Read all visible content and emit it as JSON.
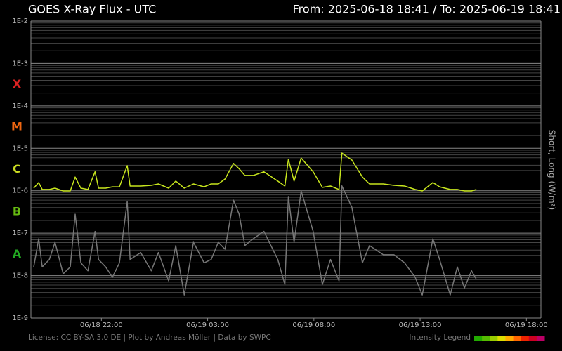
{
  "chart_data": {
    "type": "line",
    "title": "GOES X-Ray Flux - UTC",
    "range_label": "From: 2025-06-18 18:41  /  To: 2025-06-19 18:41",
    "ylabel": "Short, Long (W/m²)",
    "footer": "License: CC BY-SA 3.0 DE | Plot by Andreas Möller | Data by SWPC",
    "log_y": true,
    "grid": true,
    "xlim": [
      "2025-06-18T18:41Z",
      "2025-06-19T18:41Z"
    ],
    "ylim": [
      1e-09,
      0.01
    ],
    "yticks": [
      {
        "value": 1e-09,
        "label": "1E-9"
      },
      {
        "value": 1e-08,
        "label": "1E-8"
      },
      {
        "value": 1e-07,
        "label": "1E-7"
      },
      {
        "value": 1e-06,
        "label": "1E-6"
      },
      {
        "value": 1e-05,
        "label": "1E-5"
      },
      {
        "value": 0.0001,
        "label": "1E-4"
      },
      {
        "value": 0.001,
        "label": "1E-3"
      },
      {
        "value": 0.01,
        "label": "1E-2"
      }
    ],
    "yminor": [
      2e-09,
      3e-09,
      4e-09,
      5e-09,
      6e-09,
      7e-09,
      8e-09,
      9e-09,
      2e-08,
      3e-08,
      4e-08,
      5e-08,
      6e-08,
      7e-08,
      8e-08,
      9e-08,
      2e-07,
      3e-07,
      4e-07,
      5e-07,
      6e-07,
      7e-07,
      8e-07,
      9e-07,
      2e-06,
      3e-06,
      4e-06,
      5e-06,
      6e-06,
      7e-06,
      8e-06,
      9e-06,
      2e-05,
      3e-05,
      4e-05,
      5e-05,
      6e-05,
      7e-05,
      8e-05,
      9e-05,
      0.0002,
      0.0003,
      0.0004,
      0.0005,
      0.0006,
      0.0007,
      0.0008,
      0.0009,
      0.002,
      0.003,
      0.004,
      0.005,
      0.006,
      0.007,
      0.008,
      0.009
    ],
    "xticks": [
      {
        "value": "2025-06-18T22:00Z",
        "label": "06/18 22:00"
      },
      {
        "value": "2025-06-19T03:00Z",
        "label": "06/19 03:00"
      },
      {
        "value": "2025-06-19T08:00Z",
        "label": "06/19 08:00"
      },
      {
        "value": "2025-06-19T13:00Z",
        "label": "06/19 13:00"
      },
      {
        "value": "2025-06-19T18:00Z",
        "label": "06/19 18:00"
      }
    ],
    "flare_classes": [
      {
        "label": "X",
        "value": 0.000316,
        "color": "#dd2222"
      },
      {
        "label": "M",
        "value": 3.16e-05,
        "color": "#ee6611"
      },
      {
        "label": "C",
        "value": 3.16e-06,
        "color": "#ccdd22"
      },
      {
        "label": "B",
        "value": 3.16e-07,
        "color": "#66bb11"
      },
      {
        "label": "A",
        "value": 3.16e-08,
        "color": "#22aa22"
      }
    ],
    "intensity_legend": {
      "label": "Intensity Legend",
      "colors": [
        "#22aa00",
        "#55bb00",
        "#99cc00",
        "#dddd00",
        "#ffaa00",
        "#ff6600",
        "#ee2200",
        "#cc0022",
        "#bb0066"
      ]
    },
    "x": [
      "2025-06-18T18:49Z",
      "2025-06-18T19:03Z",
      "2025-06-18T19:13Z",
      "2025-06-18T19:33Z",
      "2025-06-18T19:49Z",
      "2025-06-18T20:12Z",
      "2025-06-18T20:32Z",
      "2025-06-18T20:46Z",
      "2025-06-18T21:02Z",
      "2025-06-18T21:22Z",
      "2025-06-18T21:42Z",
      "2025-06-18T21:52Z",
      "2025-06-18T22:12Z",
      "2025-06-18T22:31Z",
      "2025-06-18T22:51Z",
      "2025-06-18T23:13Z",
      "2025-06-18T23:21Z",
      "2025-06-18T23:51Z",
      "2025-06-19T00:21Z",
      "2025-06-19T00:41Z",
      "2025-06-19T01:10Z",
      "2025-06-19T01:30Z",
      "2025-06-19T01:54Z",
      "2025-06-19T02:20Z",
      "2025-06-19T02:50Z",
      "2025-06-19T03:10Z",
      "2025-06-19T03:30Z",
      "2025-06-19T03:49Z",
      "2025-06-19T04:13Z",
      "2025-06-19T04:29Z",
      "2025-06-19T04:45Z",
      "2025-06-19T05:09Z",
      "2025-06-19T05:39Z",
      "2025-06-19T06:18Z",
      "2025-06-19T06:38Z",
      "2025-06-19T06:48Z",
      "2025-06-19T07:04Z",
      "2025-06-19T07:24Z",
      "2025-06-19T07:58Z",
      "2025-06-19T08:24Z",
      "2025-06-19T08:47Z",
      "2025-06-19T09:11Z",
      "2025-06-19T09:19Z",
      "2025-06-19T09:47Z",
      "2025-06-19T10:17Z",
      "2025-06-19T10:37Z",
      "2025-06-19T11:16Z",
      "2025-06-19T11:46Z",
      "2025-06-19T12:16Z",
      "2025-06-19T12:46Z",
      "2025-06-19T13:06Z",
      "2025-06-19T13:36Z",
      "2025-06-19T13:55Z",
      "2025-06-19T14:25Z",
      "2025-06-19T14:45Z",
      "2025-06-19T15:05Z",
      "2025-06-19T15:25Z",
      "2025-06-19T15:39Z"
    ],
    "series": [
      {
        "color": "#777777",
        "values": [
          1.6e-08,
          7.4e-08,
          1.6e-08,
          2.4e-08,
          6.1e-08,
          1.1e-08,
          1.6e-08,
          2.8e-07,
          2e-08,
          1.3e-08,
          1.1e-07,
          2.4e-08,
          1.6e-08,
          9.1e-09,
          2e-08,
          5.6e-07,
          2.4e-08,
          3.5e-08,
          1.3e-08,
          3.5e-08,
          7.5e-09,
          5.1e-08,
          3.5e-09,
          6.1e-08,
          2e-08,
          2.4e-08,
          6.1e-08,
          4.2e-08,
          6e-07,
          2.8e-07,
          5.1e-08,
          7.4e-08,
          1.1e-07,
          2.4e-08,
          6.2e-09,
          7.3e-07,
          6.1e-08,
          9.9e-07,
          1.1e-07,
          6.2e-09,
          2.4e-08,
          7.5e-09,
          1.3e-06,
          4.1e-07,
          2e-08,
          5.1e-08,
          3.1e-08,
          3.1e-08,
          2e-08,
          9.1e-09,
          3.5e-09,
          7.4e-08,
          2.4e-08,
          3.5e-09,
          1.6e-08,
          5.1e-09,
          1.3e-08,
          8.1e-09
        ]
      },
      {
        "color": "#c8e61e",
        "values": [
          1.15e-06,
          1.56e-06,
          1.07e-06,
          1.07e-06,
          1.15e-06,
          9.9e-07,
          9.9e-07,
          2.1e-06,
          1.15e-06,
          1.07e-06,
          2.8e-06,
          1.15e-06,
          1.15e-06,
          1.24e-06,
          1.24e-06,
          3.9e-06,
          1.29e-06,
          1.29e-06,
          1.34e-06,
          1.45e-06,
          1.15e-06,
          1.69e-06,
          1.15e-06,
          1.45e-06,
          1.24e-06,
          1.45e-06,
          1.45e-06,
          1.89e-06,
          4.4e-06,
          3.3e-06,
          2.3e-06,
          2.3e-06,
          2.8e-06,
          1.69e-06,
          1.29e-06,
          5.5e-06,
          1.69e-06,
          5.9e-06,
          2.8e-06,
          1.2e-06,
          1.29e-06,
          1.07e-06,
          7.7e-06,
          5.3e-06,
          2.1e-06,
          1.45e-06,
          1.45e-06,
          1.34e-06,
          1.29e-06,
          1.07e-06,
          9.9e-07,
          1.56e-06,
          1.24e-06,
          1.07e-06,
          1.07e-06,
          9.9e-07,
          9.9e-07,
          1.07e-06
        ]
      }
    ]
  }
}
